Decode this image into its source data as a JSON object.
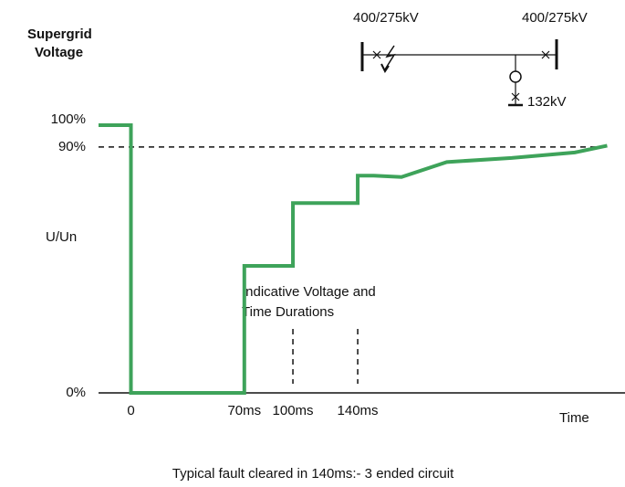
{
  "chart_data": {
    "type": "line",
    "title": [
      "Supergrid",
      "Voltage"
    ],
    "ylabel": "U/Un",
    "xlabel": "Time",
    "caption": "Typical fault cleared in 140ms:- 3 ended circuit",
    "annotation": [
      "Indicative Voltage and",
      "Time Durations"
    ],
    "x": [
      -20,
      0,
      0,
      70,
      70,
      100,
      100,
      140,
      140,
      150,
      167,
      195,
      235,
      274,
      294
    ],
    "series": [
      {
        "name": "U/Un",
        "color": "#3ea35a",
        "values": [
          98,
          98,
          0,
          0,
          46.5,
          46.5,
          69.5,
          69.5,
          79.5,
          79.5,
          79,
          84.5,
          86,
          88,
          90.5
        ]
      }
    ],
    "xlim": [
      -20,
      305
    ],
    "ylim": [
      0,
      100
    ],
    "xticks": [
      0,
      {
        "value": 70,
        "label": "70ms"
      },
      {
        "value": 100,
        "label": "100ms"
      },
      {
        "value": 140,
        "label": "140ms"
      }
    ],
    "yticks": [
      {
        "value": 0,
        "label": "0%"
      },
      {
        "value": 90,
        "label": "90%"
      },
      {
        "value": 100,
        "label": "100%"
      }
    ],
    "reference_line": 90,
    "duration_markers": [
      1,
      2,
      3
    ]
  },
  "diagram": {
    "labels": [
      "400/275kV",
      "400/275kV",
      "132kV"
    ]
  }
}
